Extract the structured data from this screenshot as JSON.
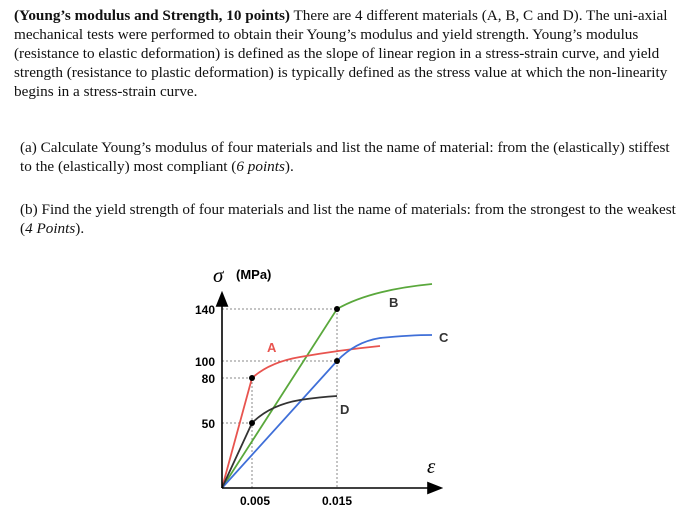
{
  "problem": {
    "title": "(Young’s modulus and Strength, 10 points)",
    "intro": " There are 4 different materials (A, B, C and D). The uni-axial mechanical tests were performed to obtain their Young’s modulus and yield strength. Young’s modulus (resistance to elastic deformation) is defined as the slope of linear region in a stress-strain curve, and yield strength (resistance to plastic deformation) is typically defined as the stress value at which the non-linearity begins in a stress-strain curve.",
    "part_a": "(a) Calculate Young’s modulus of four materials and list the name of material: from the (elastically) stiffest to the (elastically) most compliant (",
    "part_a_points": "6 points",
    "part_a_close": ").",
    "part_b": "(b) Find the yield strength of four materials and list the name of materials: from the strongest to the weakest (",
    "part_b_points": "4 Points",
    "part_b_close": ")."
  },
  "chart_data": {
    "type": "line",
    "ylabel_symbol": "σ",
    "ylabel_unit": "(MPa)",
    "xlabel_symbol": "ε",
    "yticks": [
      "140",
      "100",
      "80",
      "50"
    ],
    "xticks": [
      "0.005",
      "0.015"
    ],
    "series": [
      {
        "name": "A",
        "color": "#e8544f",
        "points": [
          [
            0,
            0
          ],
          [
            0.005,
            80
          ],
          [
            0.012,
            95
          ],
          [
            0.018,
            102
          ]
        ]
      },
      {
        "name": "B",
        "color": "#5aa83c",
        "points": [
          [
            0,
            0
          ],
          [
            0.015,
            140
          ],
          [
            0.018,
            148
          ],
          [
            0.025,
            152
          ]
        ]
      },
      {
        "name": "C",
        "color": "#3f6fd8",
        "points": [
          [
            0,
            0
          ],
          [
            0.015,
            100
          ],
          [
            0.018,
            108
          ],
          [
            0.025,
            112
          ]
        ]
      },
      {
        "name": "D",
        "color": "#333333",
        "points": [
          [
            0,
            0
          ],
          [
            0.005,
            50
          ],
          [
            0.01,
            58
          ],
          [
            0.013,
            60
          ]
        ]
      }
    ]
  }
}
